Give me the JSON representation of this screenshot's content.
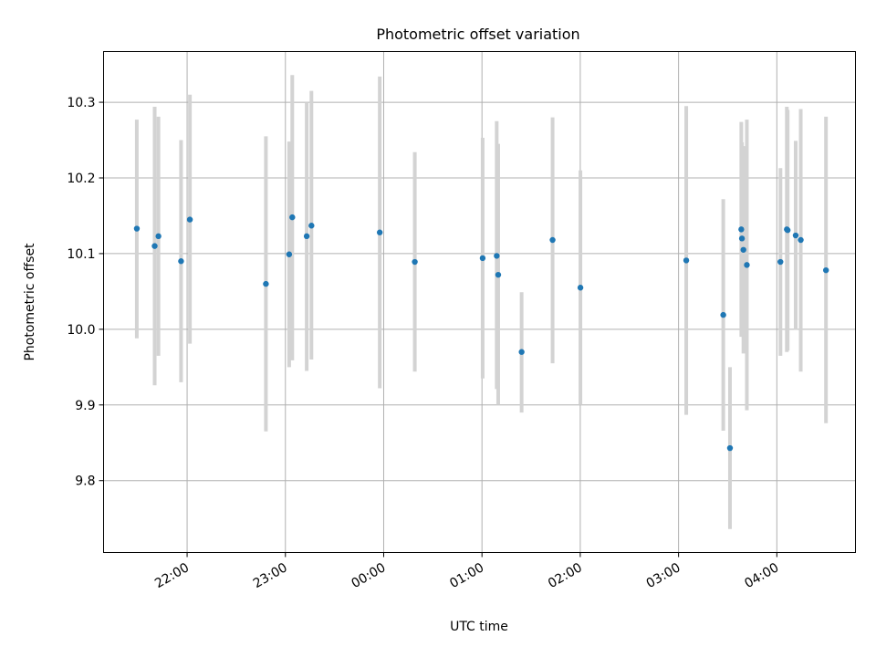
{
  "chart_data": {
    "type": "scatter",
    "title": "Photometric offset variation",
    "xlabel": "UTC time",
    "ylabel": "Photometric offset",
    "grid": true,
    "x_ticks": [
      "22:00",
      "23:00",
      "00:00",
      "01:00",
      "02:00",
      "03:00",
      "04:00"
    ],
    "x_ticks_minutes": [
      0,
      60,
      120,
      180,
      240,
      300,
      360
    ],
    "y_ticks": [
      9.8,
      9.9,
      10.0,
      10.1,
      10.2,
      10.3
    ],
    "xlim_minutes": [
      -51,
      408
    ],
    "ylim": [
      9.705,
      10.367
    ],
    "x_reference": "22:00",
    "colors": {
      "points": "#1f77b4",
      "errorbars": "#d3d3d3"
    },
    "points": [
      {
        "t": -30.7,
        "y": 10.133,
        "lo": 9.988,
        "hi": 10.277
      },
      {
        "t": -19.8,
        "y": 10.11,
        "lo": 9.926,
        "hi": 10.294
      },
      {
        "t": -17.5,
        "y": 10.123,
        "lo": 9.965,
        "hi": 10.281
      },
      {
        "t": -3.7,
        "y": 10.09,
        "lo": 9.93,
        "hi": 10.25
      },
      {
        "t": 1.7,
        "y": 10.145,
        "lo": 9.981,
        "hi": 10.31
      },
      {
        "t": 48.1,
        "y": 10.06,
        "lo": 9.865,
        "hi": 10.255
      },
      {
        "t": 62.3,
        "y": 10.099,
        "lo": 9.95,
        "hi": 10.248
      },
      {
        "t": 64.2,
        "y": 10.148,
        "lo": 9.959,
        "hi": 10.336
      },
      {
        "t": 73.0,
        "y": 10.123,
        "lo": 9.945,
        "hi": 10.3
      },
      {
        "t": 75.9,
        "y": 10.137,
        "lo": 9.96,
        "hi": 10.315
      },
      {
        "t": 117.6,
        "y": 10.128,
        "lo": 9.922,
        "hi": 10.334
      },
      {
        "t": 139.0,
        "y": 10.089,
        "lo": 9.944,
        "hi": 10.234
      },
      {
        "t": 180.4,
        "y": 10.094,
        "lo": 9.935,
        "hi": 10.253
      },
      {
        "t": 189.0,
        "y": 10.097,
        "lo": 9.921,
        "hi": 10.275
      },
      {
        "t": 189.9,
        "y": 10.072,
        "lo": 9.9,
        "hi": 10.245
      },
      {
        "t": 204.2,
        "y": 9.97,
        "lo": 9.89,
        "hi": 10.049
      },
      {
        "t": 223.1,
        "y": 10.118,
        "lo": 9.955,
        "hi": 10.28
      },
      {
        "t": 240.1,
        "y": 10.055,
        "lo": 9.9,
        "hi": 10.21
      },
      {
        "t": 304.7,
        "y": 10.091,
        "lo": 9.887,
        "hi": 10.295
      },
      {
        "t": 327.3,
        "y": 10.019,
        "lo": 9.866,
        "hi": 10.172
      },
      {
        "t": 331.4,
        "y": 9.843,
        "lo": 9.736,
        "hi": 9.95
      },
      {
        "t": 338.3,
        "y": 10.132,
        "lo": 9.99,
        "hi": 10.274
      },
      {
        "t": 338.7,
        "y": 10.12,
        "lo": 9.993,
        "hi": 10.247
      },
      {
        "t": 339.6,
        "y": 10.105,
        "lo": 9.968,
        "hi": 10.242
      },
      {
        "t": 341.7,
        "y": 10.085,
        "lo": 9.893,
        "hi": 10.277
      },
      {
        "t": 362.2,
        "y": 10.089,
        "lo": 9.965,
        "hi": 10.213
      },
      {
        "t": 366.1,
        "y": 10.132,
        "lo": 9.97,
        "hi": 10.294
      },
      {
        "t": 366.6,
        "y": 10.131,
        "lo": 9.972,
        "hi": 10.29
      },
      {
        "t": 371.5,
        "y": 10.124,
        "lo": 9.999,
        "hi": 10.249
      },
      {
        "t": 374.6,
        "y": 10.118,
        "lo": 9.944,
        "hi": 10.291
      },
      {
        "t": 390.0,
        "y": 10.078,
        "lo": 9.876,
        "hi": 10.281
      }
    ]
  }
}
